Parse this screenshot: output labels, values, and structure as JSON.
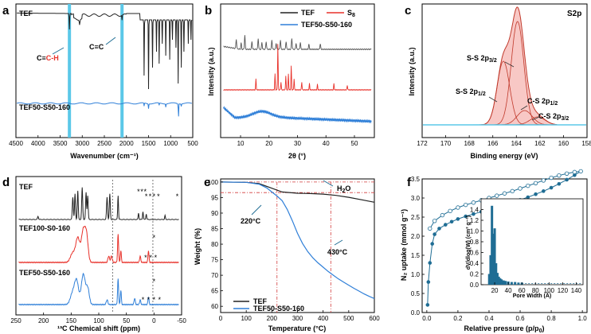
{
  "colors": {
    "black": "#222222",
    "red": "#e8312a",
    "blue": "#2f7fd8",
    "cyan": "#5bc8e8",
    "teal": "#1f6d94",
    "fillred": "#f29b95",
    "dash": "#d23a3a"
  },
  "chart_data": [
    {
      "id": "a",
      "type": "line",
      "panel_label": "a",
      "xlabel": "Wavenumber (cm⁻¹)",
      "ylabel": "",
      "xlim": [
        4500,
        500
      ],
      "xticks": [
        "4500",
        "4000",
        "3500",
        "3000",
        "2500",
        "2000",
        "1500",
        "1000",
        "500"
      ],
      "series": [
        {
          "name": "TEF",
          "color": "black"
        },
        {
          "name": "TEF50-S50-160",
          "color": "blue"
        }
      ],
      "labels": {
        "tef": "TEF",
        "tefs": "TEF50-S50-160",
        "cch_pre": "C≡",
        "cch_red": "C-H",
        "cc": "C≡C"
      },
      "highlight_bands": [
        3290,
        2100
      ]
    },
    {
      "id": "b",
      "type": "line",
      "panel_label": "b",
      "xlabel": "2θ (°)",
      "ylabel": "Intensity (a.u.)",
      "xlim": [
        3,
        57
      ],
      "xticks": [
        "10",
        "20",
        "30",
        "40",
        "50"
      ],
      "series": [
        {
          "name": "TEF",
          "color": "black"
        },
        {
          "name": "S",
          "sub": "8",
          "color": "red"
        },
        {
          "name": "TEF50-S50-160",
          "color": "blue"
        }
      ]
    },
    {
      "id": "c",
      "type": "line",
      "panel_label": "c",
      "xlabel": "Binding energy (eV)",
      "ylabel": "Intensity (a.u.)",
      "xlim": [
        172,
        158
      ],
      "xticks": [
        "172",
        "170",
        "168",
        "166",
        "164",
        "162",
        "160",
        "158"
      ],
      "title": "S2p",
      "peaks": [
        {
          "label": "S-S 2p",
          "sub": "3/2",
          "center": 163.9
        },
        {
          "label": "S-S 2p",
          "sub": "1/2",
          "center": 165.1
        },
        {
          "label": "C-S 2p",
          "sub": "1/2",
          "center": 163.3
        },
        {
          "label": "C-S 2p",
          "sub": "3/2",
          "center": 162.2
        }
      ]
    },
    {
      "id": "d",
      "type": "line",
      "panel_label": "d",
      "xlabel": "¹³C Chemical shift (ppm)",
      "ylabel": "",
      "xlim": [
        250,
        -50
      ],
      "xticks": [
        "250",
        "200",
        "150",
        "100",
        "50",
        "0",
        "-50"
      ],
      "series": [
        {
          "name": "TEF",
          "color": "black"
        },
        {
          "name": "TEF100-S0-160",
          "color": "red"
        },
        {
          "name": "TEF50-S50-160",
          "color": "blue"
        }
      ],
      "star": "*"
    },
    {
      "id": "e",
      "type": "line",
      "panel_label": "e",
      "xlabel": "Temperature (°C)",
      "ylabel": "Weight (%)",
      "xlim": [
        0,
        600
      ],
      "ylim": [
        58,
        101
      ],
      "xticks": [
        "0",
        "100",
        "200",
        "300",
        "400",
        "500",
        "600"
      ],
      "yticks": [
        "60",
        "65",
        "70",
        "75",
        "80",
        "85",
        "90",
        "95",
        "100"
      ],
      "series": [
        {
          "name": "TEF",
          "color": "black",
          "x": [
            0,
            100,
            150,
            200,
            240,
            300,
            350,
            400,
            450,
            500,
            550,
            600
          ],
          "y": [
            100,
            99.9,
            99.5,
            98.0,
            96.8,
            96.4,
            96.3,
            96.1,
            95.7,
            95.1,
            94.3,
            93.5
          ]
        },
        {
          "name": "TEF50-S50-160",
          "color": "blue",
          "x": [
            0,
            100,
            150,
            180,
            200,
            220,
            240,
            260,
            280,
            300,
            320,
            340,
            360,
            380,
            400,
            420,
            440,
            460,
            480,
            500,
            520,
            540,
            560,
            580,
            600
          ],
          "y": [
            100,
            99.9,
            99.3,
            98.1,
            96.8,
            95.5,
            94.0,
            91.2,
            87.5,
            83.5,
            80.2,
            77.6,
            75.6,
            74.0,
            72.6,
            71.2,
            70.0,
            68.8,
            67.8,
            66.8,
            65.8,
            64.9,
            64.0,
            63.2,
            62.5
          ]
        }
      ],
      "annotations": {
        "t1": "220°C",
        "t2": "430°C",
        "h2o_pre": "H",
        "h2o_sub": "2",
        "h2o_post": "O"
      }
    },
    {
      "id": "f",
      "type": "line",
      "panel_label": "f",
      "xlabel": "Relative pressure (p/p",
      "xlabel_sub": "0",
      "xlabel_post": ")",
      "ylabel": "N₂ uptake (mmol g⁻¹)",
      "xlim": [
        -0.03,
        1.03
      ],
      "ylim": [
        0,
        3.5
      ],
      "xticks": [
        "0.0",
        "0.2",
        "0.4",
        "0.6",
        "0.8",
        "1.0"
      ],
      "yticks": [
        "0.0",
        "0.5",
        "1.0",
        "1.5",
        "2.0",
        "2.5",
        "3.0",
        "3.5"
      ],
      "adsorption": {
        "x": [
          0.005,
          0.01,
          0.02,
          0.035,
          0.05,
          0.08,
          0.12,
          0.16,
          0.2,
          0.25,
          0.3,
          0.35,
          0.4,
          0.45,
          0.5,
          0.55,
          0.6,
          0.65,
          0.7,
          0.75,
          0.8,
          0.85,
          0.9,
          0.95,
          0.99
        ],
        "y": [
          0.2,
          0.8,
          1.3,
          1.8,
          2.05,
          2.2,
          2.3,
          2.38,
          2.45,
          2.52,
          2.58,
          2.64,
          2.7,
          2.76,
          2.82,
          2.88,
          2.95,
          3.02,
          3.1,
          3.18,
          3.27,
          3.37,
          3.48,
          3.6,
          3.7
        ]
      },
      "desorption": {
        "x": [
          0.99,
          0.95,
          0.9,
          0.85,
          0.8,
          0.75,
          0.7,
          0.65,
          0.6,
          0.55,
          0.5,
          0.45,
          0.4,
          0.35,
          0.3,
          0.25,
          0.2,
          0.15,
          0.1,
          0.05,
          0.02
        ],
        "y": [
          3.7,
          3.68,
          3.64,
          3.59,
          3.53,
          3.46,
          3.39,
          3.32,
          3.25,
          3.18,
          3.12,
          3.06,
          3.0,
          2.94,
          2.88,
          2.82,
          2.75,
          2.66,
          2.55,
          2.4,
          2.2
        ]
      },
      "inset": {
        "xlabel": "Pore Width (Å)",
        "ylabel": "dV/dlog(W) (cm³ g⁻¹)",
        "xlim": [
          0,
          150
        ],
        "ylim": [
          0,
          1.6
        ],
        "xticks": [
          "20",
          "40",
          "60",
          "80",
          "100",
          "120",
          "140"
        ],
        "yticks": [
          "0.0",
          "0.2",
          "0.4",
          "0.6",
          "0.8",
          "1.0",
          "1.2",
          "1.4"
        ],
        "bars": {
          "x": [
            12,
            14,
            16,
            18,
            20,
            22,
            24,
            26,
            28,
            30,
            33,
            36,
            40,
            45,
            50,
            55,
            60
          ],
          "y": [
            0.2,
            0.55,
            1.47,
            0.95,
            1.05,
            0.4,
            0.22,
            0.15,
            0.12,
            0.1,
            0.08,
            0.07,
            0.06,
            0.05,
            0.05,
            0.04,
            0.04
          ]
        },
        "dashed_level": 0.02
      }
    }
  ]
}
